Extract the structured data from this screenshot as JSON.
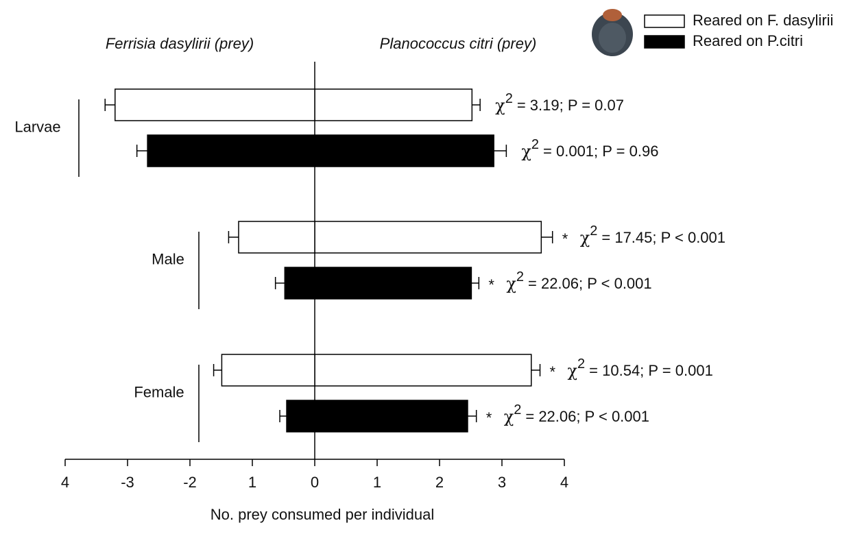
{
  "chart_data": {
    "type": "diverging-bar",
    "left_label": "Ferrisia  dasylirii (prey)",
    "right_label": "Planococcus citri (prey)",
    "x_label": "No. prey consumed per individual",
    "categories": [
      "Larvae",
      "Male",
      "Female"
    ],
    "chi_symbol": "χ",
    "chi_exponent": "2",
    "series": [
      {
        "name": "Reared on F. dasylirii",
        "color": "#ffffff",
        "values": [
          2.52,
          3.63,
          3.47
        ],
        "errors": [
          0.13,
          0.18,
          0.14
        ],
        "left_values": [
          -3.2,
          -1.22,
          -1.49
        ],
        "left_errors": [
          0.16,
          0.16,
          0.13
        ],
        "significance": [
          null,
          "*",
          "*"
        ],
        "stat_labels": [
          "= 3.19; P = 0.07",
          "= 17.45; P < 0.001",
          "= 10.54; P = 0.001"
        ]
      },
      {
        "name": "Reared on P.citri",
        "color": "#000000",
        "values": [
          2.87,
          2.51,
          2.45
        ],
        "errors": [
          0.2,
          0.12,
          0.14
        ],
        "left_values": [
          -2.68,
          -0.48,
          -0.45
        ],
        "left_errors": [
          0.17,
          0.15,
          0.11
        ],
        "significance": [
          null,
          "*",
          "*"
        ],
        "stat_labels": [
          "= 0.001; P = 0.96",
          "= 22.06; P < 0.001",
          "= 22.06; P < 0.001"
        ]
      }
    ],
    "xlim": [
      -4,
      4
    ],
    "xticks": [
      {
        "value": -4,
        "label": "4"
      },
      -3,
      -2,
      {
        "value": -1,
        "label": "1"
      },
      0,
      1,
      2,
      3,
      4
    ]
  }
}
